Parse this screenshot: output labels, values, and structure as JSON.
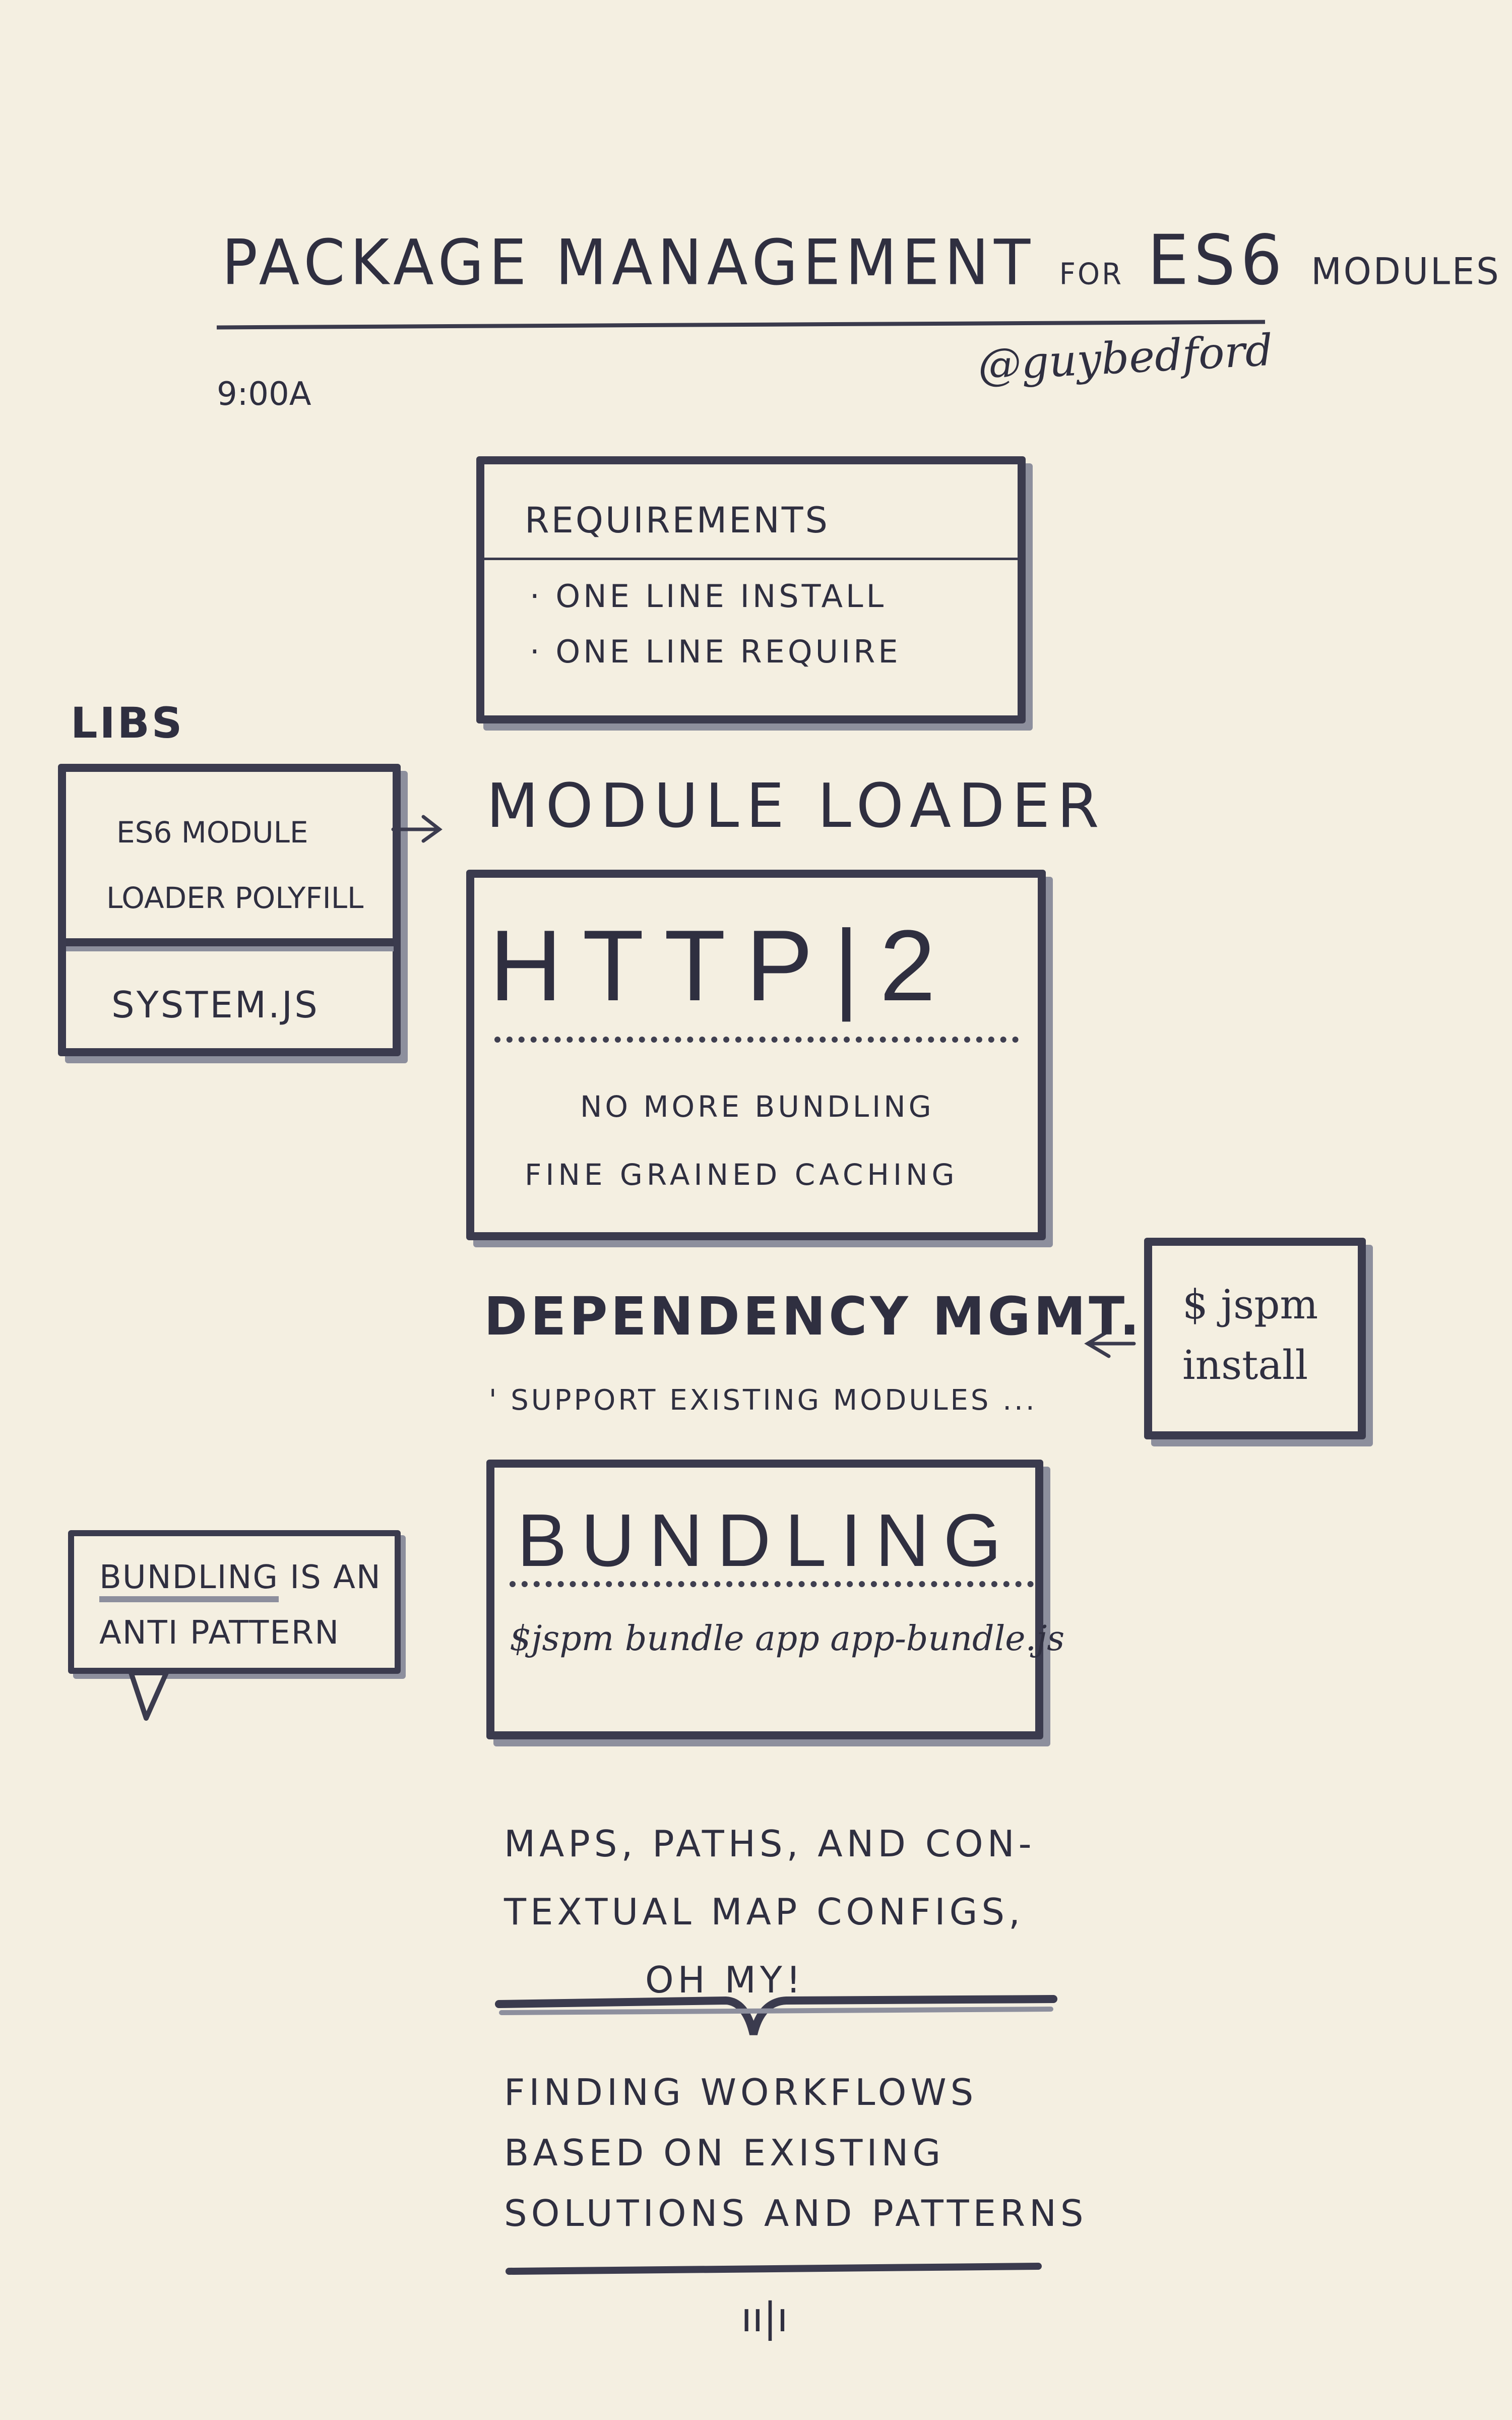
{
  "header": {
    "title_main": "PACKAGE MANAGEMENT",
    "title_for": "FOR",
    "title_es6": "ES6",
    "title_modules": "MODULES",
    "time": "9:00A",
    "author": "@guybedford"
  },
  "requirements": {
    "title": "REQUIREMENTS",
    "items": [
      "· ONE LINE INSTALL",
      "· ONE LINE REQUIRE"
    ]
  },
  "libs": {
    "label": "LIBS",
    "item1": "ES6 MODULE LOADER POLYFILL",
    "item1_line1": "ES6 MODULE",
    "item1_line2": "LOADER POLYFILL",
    "item2": "SYSTEM.JS"
  },
  "module_loader": {
    "title": "MODULE LOADER"
  },
  "http2": {
    "title": "HTTP|2",
    "line1": "NO MORE BUNDLING",
    "line2": "FINE GRAINED CACHING"
  },
  "dependency": {
    "title": "DEPENDENCY MGMT.",
    "subtitle": "' SUPPORT EXISTING MODULES ..."
  },
  "jspm_install": {
    "line1": "$ jspm",
    "line2": "install"
  },
  "bundling": {
    "title": "BUNDLING",
    "command": "$jspm bundle app app-bundle.js"
  },
  "bubble": {
    "line1_word": "BUNDLING",
    "line1_rest": " IS AN",
    "line2": "ANTI PATTERN"
  },
  "maps": {
    "line1": "MAPS, PATHS, AND CON-",
    "line2": "TEXTUAL MAP CONFIGS,",
    "line3": "OH MY!"
  },
  "workflows": {
    "line1": "FINDING WORKFLOWS",
    "line2": "BASED ON EXISTING",
    "line3": "SOLUTIONS AND PATTERNS"
  },
  "footer_mark": "ıı|ı",
  "colors": {
    "paper": "#f4efe1",
    "ink": "#3b3b4e",
    "marker_shadow": "#8d8f9d"
  }
}
